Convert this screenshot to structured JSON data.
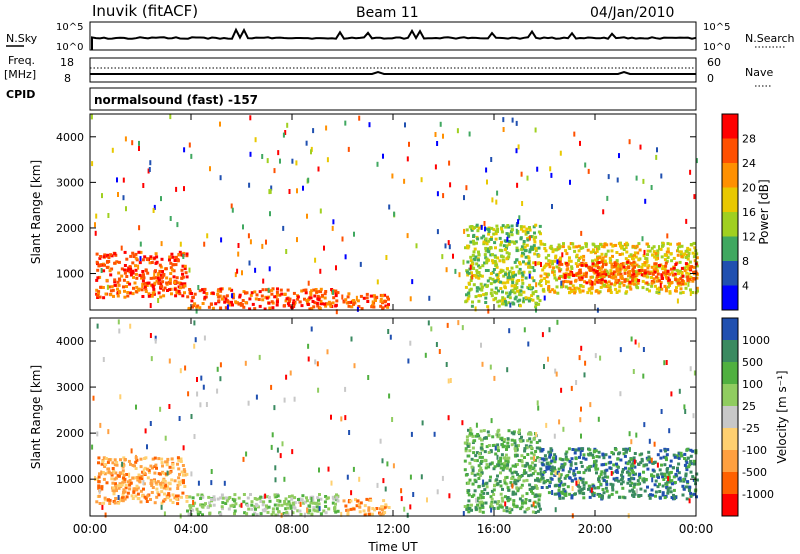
{
  "header": {
    "title": "Inuvik (fitACF)",
    "beam": "Beam 11",
    "date": "04/Jan/2010"
  },
  "top_panels": {
    "nsky_label": "N.Sky",
    "nsky_ticks": [
      "10^5",
      "10^0"
    ],
    "nsearch_label": "N.Search",
    "nsearch_ticks": [
      "10^5",
      "10^0"
    ],
    "freq_label": "Freq.",
    "freq_unit": "[MHz]",
    "freq_ticks": [
      "18",
      "8"
    ],
    "nave_label": "Nave",
    "nave_ticks": [
      "60",
      "0"
    ],
    "cpid_label": "CPID",
    "cpid_value": "normalsound (fast) -157"
  },
  "chart_data": [
    {
      "type": "heatmap",
      "name": "power",
      "ylabel": "Slant Range [km]",
      "yticks": [
        "4000",
        "3000",
        "2000",
        "1000"
      ],
      "ylim": [
        200,
        4500
      ],
      "xlim": [
        0,
        24
      ],
      "colorbar": {
        "label": "Power [dB]",
        "ticks": [
          "28",
          "24",
          "20",
          "16",
          "12",
          "8",
          "4"
        ],
        "colors": [
          "#ff0000",
          "#ff5000",
          "#ff9000",
          "#e8c800",
          "#a0d020",
          "#40a860",
          "#2050b0",
          "#0000ff"
        ]
      },
      "regions": [
        {
          "t0": 0.2,
          "t1": 3.8,
          "r0": 500,
          "r1": 1500,
          "level": 1
        },
        {
          "t0": 3.8,
          "t1": 9.8,
          "r0": 250,
          "r1": 700,
          "level": 1
        },
        {
          "t0": 10.0,
          "t1": 11.8,
          "r0": 250,
          "r1": 600,
          "level": 1
        },
        {
          "t0": 14.8,
          "t1": 17.8,
          "r0": 300,
          "r1": 2100,
          "level": 4
        },
        {
          "t0": 17.8,
          "t1": 24.0,
          "r0": 600,
          "r1": 1700,
          "level": 3
        },
        {
          "t0": 18.5,
          "t1": 24.0,
          "r0": 800,
          "r1": 1300,
          "level": 1
        }
      ]
    },
    {
      "type": "heatmap",
      "name": "velocity",
      "ylabel": "Slant Range [km]",
      "yticks": [
        "4000",
        "3000",
        "2000",
        "1000"
      ],
      "ylim": [
        200,
        4500
      ],
      "xlim": [
        0,
        24
      ],
      "colorbar": {
        "label": "Velocity [m s⁻¹]",
        "ticks": [
          "1000",
          "500",
          "100",
          "25",
          "-25",
          "-100",
          "-500",
          "-1000"
        ],
        "colors": [
          "#2050b0",
          "#3a8a60",
          "#50b040",
          "#90cc60",
          "#c8c8c8",
          "#ffd070",
          "#ffa040",
          "#ff6000",
          "#ff0000"
        ]
      },
      "regions": [
        {
          "t0": 0.2,
          "t1": 3.8,
          "r0": 500,
          "r1": 1500,
          "level": 6
        },
        {
          "t0": 3.8,
          "t1": 9.8,
          "r0": 250,
          "r1": 700,
          "level": 3
        },
        {
          "t0": 10.0,
          "t1": 11.8,
          "r0": 250,
          "r1": 600,
          "level": 6
        },
        {
          "t0": 14.8,
          "t1": 17.8,
          "r0": 300,
          "r1": 2100,
          "level": 2
        },
        {
          "t0": 17.8,
          "t1": 24.0,
          "r0": 600,
          "r1": 1700,
          "level": 1
        }
      ]
    }
  ],
  "x_axis": {
    "ticks": [
      "00:00",
      "04:00",
      "08:00",
      "12:00",
      "16:00",
      "20:00",
      "00:00"
    ],
    "label": "Time UT"
  }
}
